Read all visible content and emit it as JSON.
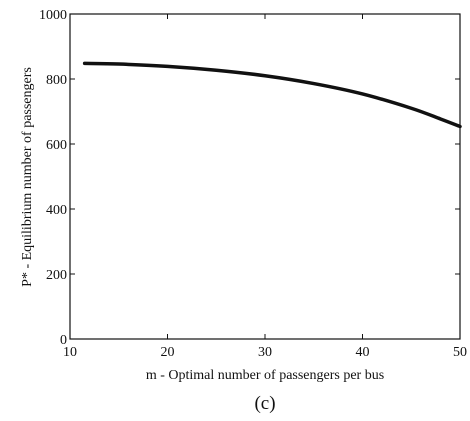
{
  "chart_data": {
    "type": "line",
    "xlabel": "m - Optimal number of passengers per bus",
    "ylabel": "P* - Equilibrium number of passengers",
    "xlim": [
      10,
      50
    ],
    "ylim": [
      0,
      1000
    ],
    "xticks": [
      10,
      20,
      30,
      40,
      50
    ],
    "yticks": [
      0,
      200,
      400,
      600,
      800,
      1000
    ],
    "grid": false,
    "panel_label": "(c)",
    "series": [
      {
        "x": [
          11.5,
          15,
          20,
          25,
          30,
          35,
          40,
          45,
          48,
          50
        ],
        "y": [
          848,
          846,
          839,
          827,
          810,
          786,
          754,
          710,
          677,
          654
        ]
      }
    ],
    "line_color": "#111111"
  }
}
